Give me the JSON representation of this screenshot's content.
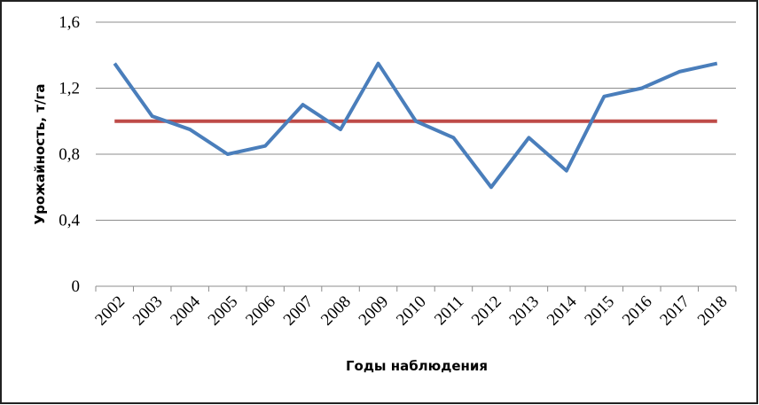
{
  "chart_data": {
    "type": "line",
    "y_label": "Урожайность,  т/га",
    "x_label": "Годы наблюдения",
    "categories": [
      "2002",
      "2003",
      "2004",
      "2005",
      "2006",
      "2007",
      "2008",
      "2009",
      "2010",
      "2011",
      "2012",
      "2013",
      "2014",
      "2015",
      "2016",
      "2017",
      "2018"
    ],
    "series": [
      {
        "color": "#4a7ebb",
        "values": [
          1.35,
          1.03,
          0.95,
          0.8,
          0.85,
          1.1,
          0.95,
          1.35,
          1.0,
          0.9,
          0.6,
          0.9,
          0.7,
          1.15,
          1.2,
          1.3,
          1.35
        ]
      },
      {
        "color": "#be4b48",
        "values": [
          1.0,
          1.0,
          1.0,
          1.0,
          1.0,
          1.0,
          1.0,
          1.0,
          1.0,
          1.0,
          1.0,
          1.0,
          1.0,
          1.0,
          1.0,
          1.0,
          1.0
        ]
      }
    ],
    "ylim": [
      0,
      1.6
    ],
    "yticks": [
      0,
      {
        "value": 0.4,
        "label": "0,4"
      },
      {
        "value": 0.8,
        "label": "0,8"
      },
      {
        "value": 1.2,
        "label": "1,2"
      },
      {
        "value": 1.6,
        "label": "1,6"
      }
    ],
    "grid": true
  }
}
